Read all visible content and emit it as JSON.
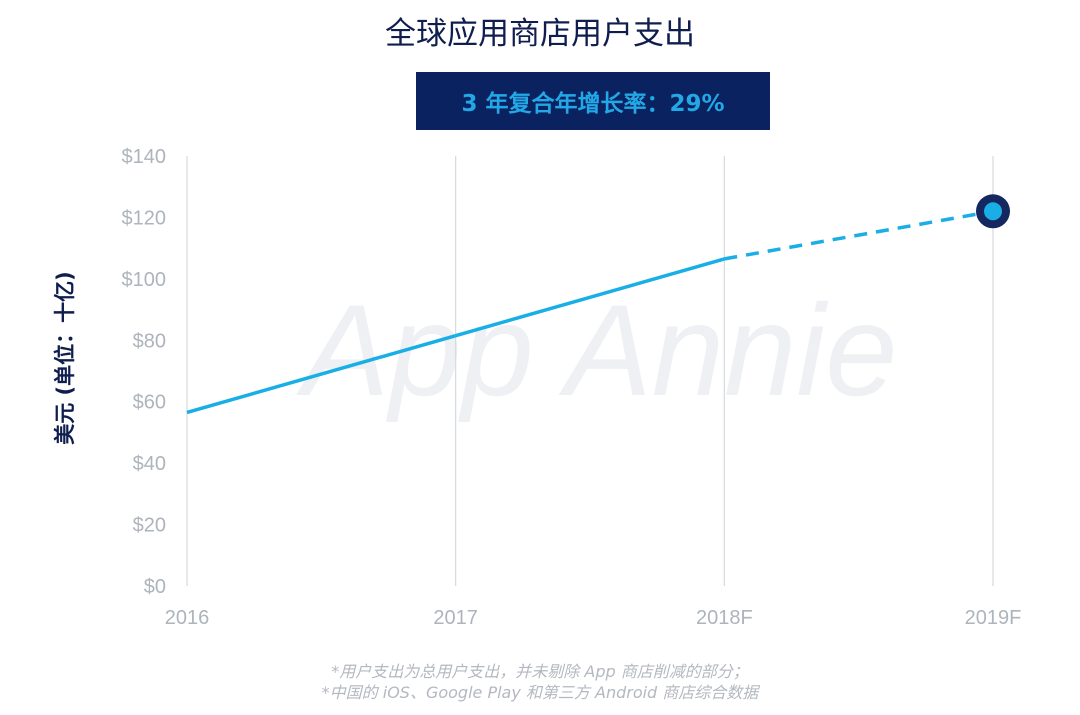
{
  "title": "全球应用商店用户支出",
  "cagr_label": "3 年复合年增长率：29%",
  "watermark": "App Annie",
  "footnotes": [
    "*用户支出为总用户支出，并未剔除 App 商店削减的部分；",
    "*中国的 iOS、Google Play 和第三方 Android 商店综合数据"
  ],
  "colors": {
    "line": "#1aaee6",
    "title": "#0f1e4e",
    "box": "#0b2260",
    "box_text": "#22a8e6",
    "grid": "#d6d9de"
  },
  "chart_data": {
    "type": "line",
    "categories": [
      "2016",
      "2017",
      "2018F",
      "2019F"
    ],
    "series": [
      {
        "values": [
          56.5,
          81.5,
          106.5,
          122
        ],
        "style": [
          "solid",
          "solid",
          "dashed"
        ]
      }
    ],
    "ylabel": "美元 (单位：十亿)",
    "ylim": [
      0,
      140
    ],
    "yticks": [
      0,
      20,
      40,
      60,
      80,
      100,
      120,
      140
    ],
    "ytick_labels": [
      "$0",
      "$20",
      "$40",
      "$60",
      "$80",
      "$100",
      "$120",
      "$140"
    ],
    "grid": "vertical",
    "highlight_last_point": true
  }
}
